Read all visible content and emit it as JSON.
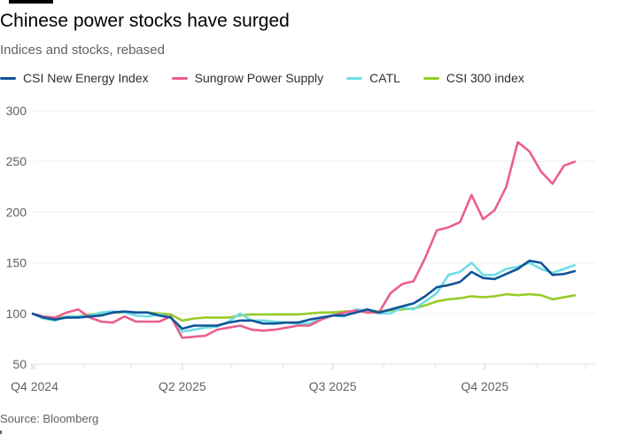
{
  "header": {
    "title": "Chinese power stocks have surged",
    "subtitle": "Indices and stocks, rebased"
  },
  "source": "Source: Bloomberg",
  "chart_data": {
    "type": "line",
    "title": "Chinese power stocks have surged",
    "subtitle": "Indices and stocks, rebased",
    "x_start": "2024-12-31",
    "x_step_days": 7,
    "x_end": "2025-12-02",
    "ylim": [
      50,
      300
    ],
    "yticks": [
      50,
      100,
      150,
      200,
      250,
      300
    ],
    "xticks": [
      {
        "label": "Q4 2024",
        "date": "2024-12-31"
      },
      {
        "label": "Q2 2025",
        "date": "2025-04-01"
      },
      {
        "label": "Q3 2025",
        "date": "2025-07-01"
      },
      {
        "label": "Q4 2025",
        "date": "2025-10-01"
      }
    ],
    "grid": true,
    "legend": "top",
    "series": [
      {
        "name": "CSI New Energy Index",
        "color": "#0f5499",
        "values": [
          100,
          96,
          94,
          96,
          96,
          97,
          98,
          101,
          102,
          101,
          101,
          98,
          96,
          85,
          88,
          88,
          88,
          91,
          93,
          93,
          90,
          90,
          91,
          91,
          94,
          96,
          98,
          98,
          101,
          104,
          101,
          104,
          107,
          110,
          117,
          126,
          128,
          131,
          141,
          135,
          134,
          139,
          144,
          152,
          150,
          138,
          139,
          142
        ]
      },
      {
        "name": "Sungrow Power Supply",
        "color": "#eb5e8d",
        "values": [
          100,
          97,
          96,
          101,
          104,
          96,
          92,
          91,
          97,
          92,
          92,
          92,
          97,
          76,
          77,
          78,
          84,
          86,
          88,
          84,
          83,
          84,
          86,
          88,
          88,
          94,
          98,
          101,
          103,
          101,
          101,
          120,
          129,
          132,
          155,
          182,
          185,
          190,
          217,
          193,
          202,
          225,
          269,
          260,
          240,
          228,
          246,
          250
        ]
      },
      {
        "name": "CATL",
        "color": "#6fdde6",
        "values": [
          100,
          95,
          93,
          97,
          97,
          98,
          101,
          102,
          101,
          98,
          97,
          99,
          96,
          82,
          84,
          86,
          87,
          92,
          100,
          93,
          93,
          92,
          91,
          90,
          90,
          95,
          98,
          97,
          104,
          103,
          100,
          100,
          106,
          104,
          112,
          120,
          138,
          141,
          150,
          138,
          138,
          144,
          146,
          150,
          144,
          140,
          144,
          148
        ]
      },
      {
        "name": "CSI 300 index",
        "color": "#96cc28",
        "values": [
          100,
          96,
          95,
          97,
          97,
          99,
          100,
          101,
          101,
          101,
          101,
          100,
          99,
          93,
          95,
          96,
          96,
          96,
          98,
          99,
          99,
          99,
          99,
          99,
          100,
          101,
          101,
          102,
          102,
          103,
          102,
          103,
          104,
          105,
          108,
          112,
          114,
          115,
          117,
          116,
          117,
          119,
          118,
          119,
          118,
          114,
          116,
          118
        ]
      }
    ]
  }
}
